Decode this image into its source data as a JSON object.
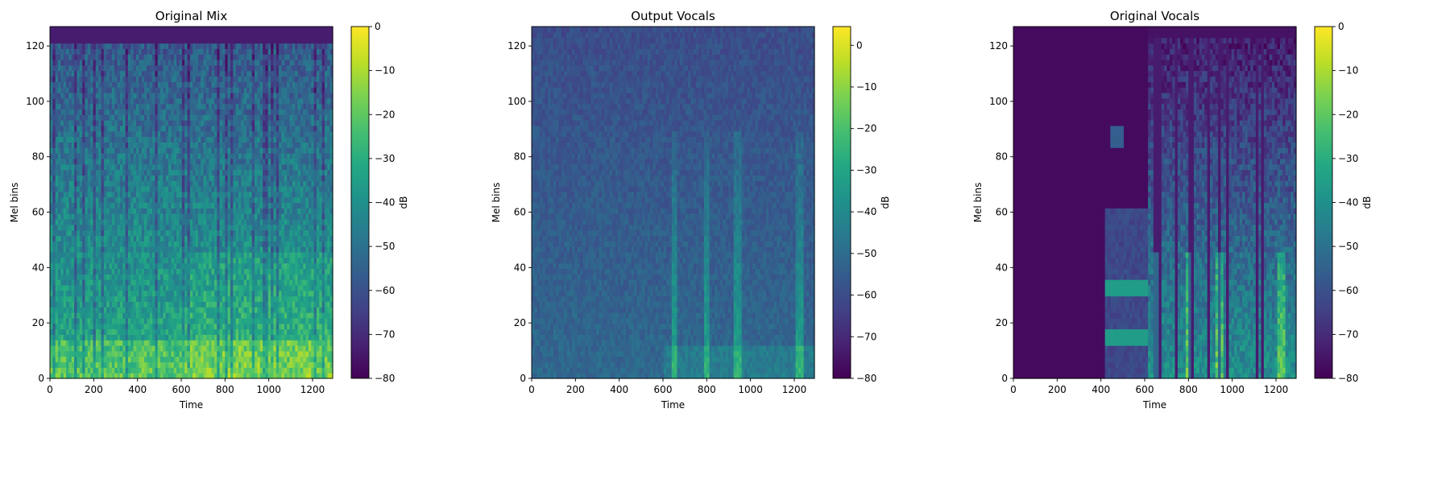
{
  "chart_data": [
    {
      "type": "heatmap",
      "title": "Original Mix",
      "xlabel": "Time",
      "ylabel": "Mel bins",
      "xlim": [
        0,
        1292
      ],
      "ylim": [
        0,
        127
      ],
      "xticks": [
        "0",
        "200",
        "400",
        "600",
        "800",
        "1000",
        "1200"
      ],
      "yticks": [
        "0",
        "20",
        "40",
        "60",
        "80",
        "100",
        "120"
      ],
      "colorbar": {
        "label": "dB",
        "range": [
          -80,
          0
        ],
        "ticks": [
          "0",
          "−10",
          "−20",
          "−30",
          "−40",
          "−50",
          "−60",
          "−70",
          "−80"
        ]
      },
      "colormap": "viridis",
      "character": "mix"
    },
    {
      "type": "heatmap",
      "title": "Output Vocals",
      "xlabel": "Time",
      "ylabel": "Mel bins",
      "xlim": [
        0,
        1292
      ],
      "ylim": [
        0,
        127
      ],
      "xticks": [
        "0",
        "200",
        "400",
        "600",
        "800",
        "1000",
        "1200"
      ],
      "yticks": [
        "0",
        "20",
        "40",
        "60",
        "80",
        "100",
        "120"
      ],
      "colorbar": {
        "label": "dB",
        "range": [
          -80,
          4.5
        ],
        "ticks": [
          "0",
          "−10",
          "−20",
          "−30",
          "−40",
          "−50",
          "−60",
          "−70",
          "−80"
        ]
      },
      "colormap": "viridis",
      "character": "output"
    },
    {
      "type": "heatmap",
      "title": "Original Vocals",
      "xlabel": "Time",
      "ylabel": "Mel bins",
      "xlim": [
        0,
        1292
      ],
      "ylim": [
        0,
        127
      ],
      "xticks": [
        "0",
        "200",
        "400",
        "600",
        "800",
        "1000",
        "1200"
      ],
      "yticks": [
        "0",
        "20",
        "40",
        "60",
        "80",
        "100",
        "120"
      ],
      "colorbar": {
        "label": "dB",
        "range": [
          -80,
          0
        ],
        "ticks": [
          "0",
          "−10",
          "−20",
          "−30",
          "−40",
          "−50",
          "−60",
          "−70",
          "−80"
        ]
      },
      "colormap": "viridis",
      "character": "vocals"
    }
  ]
}
